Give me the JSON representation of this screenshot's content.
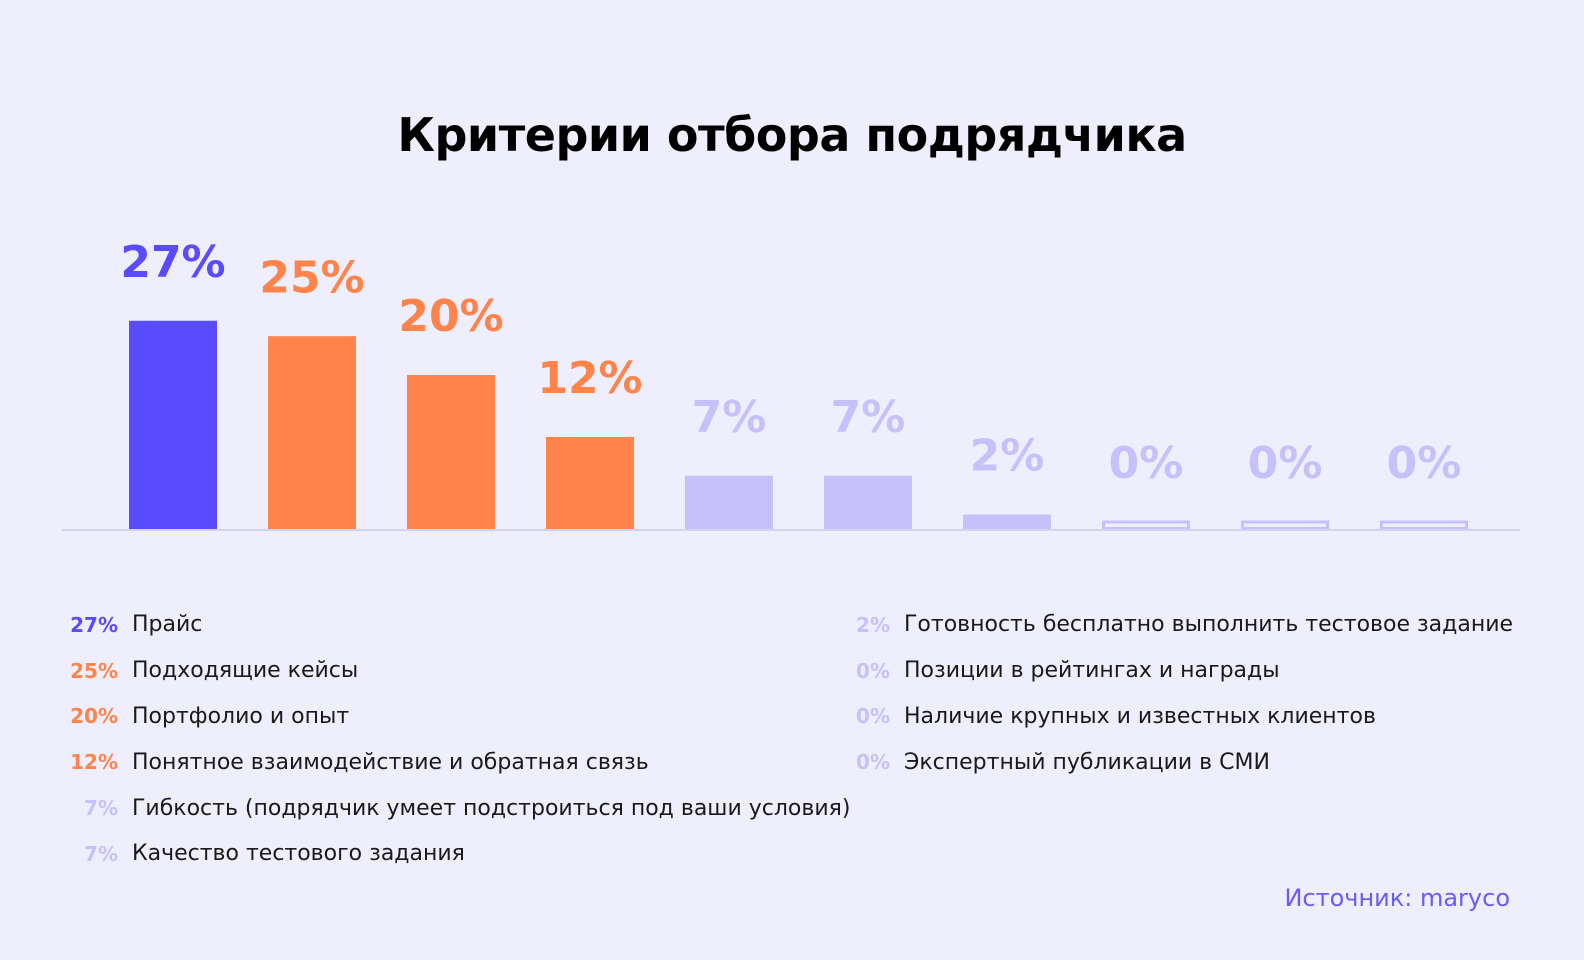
{
  "title": "Критерии отбора подрядчика",
  "source": "Источник: maryco",
  "colors": {
    "primary": "#5b4bff",
    "orange": "#ff844c",
    "light": "#c6c1fb",
    "background": "#eeeefd",
    "baseline": "#d3d2f2"
  },
  "chart_data": {
    "type": "bar",
    "title": "Критерии отбора подрядчика",
    "categories": [
      "Прайс",
      "Подходящие кейсы",
      "Портфолио и опыт",
      "Понятное взаимодействие и обратная связь",
      "Гибкость (подрядчик умеет подстроиться под ваши условия)",
      "Качество тестового задания",
      "Готовность бесплатно выполнить тестовое задание",
      "Позиции в рейтингах и наградах",
      "Наличие крупных и известных клиентов",
      "Экспертный публикации в СМИ"
    ],
    "values": [
      27,
      25,
      20,
      12,
      7,
      7,
      2,
      0,
      0,
      0
    ],
    "labels": [
      "27%",
      "25%",
      "20%",
      "12%",
      "7%",
      "7%",
      "2%",
      "0%",
      "0%",
      "0%"
    ],
    "bar_colors": [
      "#5b4bff",
      "#ff844c",
      "#ff844c",
      "#ff844c",
      "#c6c1fb",
      "#c6c1fb",
      "#c6c1fb",
      "#c6c1fb",
      "#c6c1fb",
      "#c6c1fb"
    ],
    "grid": false
  },
  "legend": {
    "left": [
      {
        "pct": "27%",
        "label": "Прайс",
        "color": "#5b4bff"
      },
      {
        "pct": "25%",
        "label": "Подходящие кейсы",
        "color": "#ff844c"
      },
      {
        "pct": "20%",
        "label": "Портфолио и опыт",
        "color": "#ff844c"
      },
      {
        "pct": "12%",
        "label": "Понятное взаимодействие и обратная связь",
        "color": "#ff844c"
      },
      {
        "pct": "7%",
        "label": "Гибкость (подрядчик умеет подстроиться под ваши условия)",
        "color": "#c6c1fb"
      },
      {
        "pct": "7%",
        "label": "Качество тестового задания",
        "color": "#c6c1fb"
      }
    ],
    "right": [
      {
        "pct": "2%",
        "label": "Готовность бесплатно выполнить тестовое задание",
        "color": "#c6c1fb"
      },
      {
        "pct": "0%",
        "label": "Позиции в рейтингах и награды",
        "color": "#c6c1fb"
      },
      {
        "pct": "0%",
        "label": "Наличие крупных и известных клиентов",
        "color": "#c6c1fb"
      },
      {
        "pct": "0%",
        "label": "Экспертный публикации в СМИ",
        "color": "#c6c1fb"
      }
    ]
  }
}
